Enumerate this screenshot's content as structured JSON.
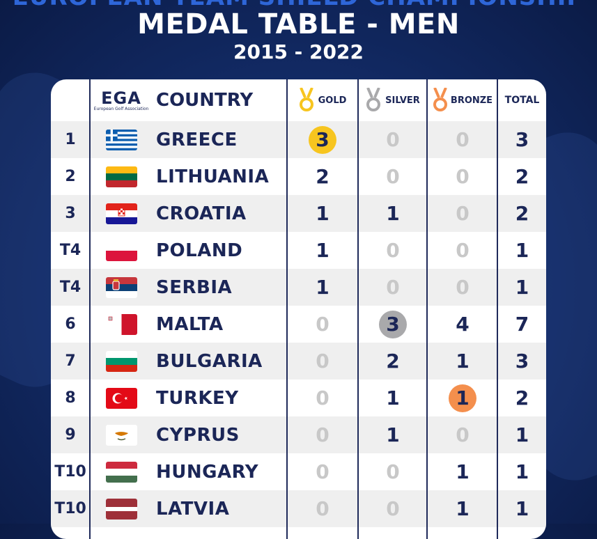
{
  "header": {
    "supertitle": "EUROPEAN TEAM SHIELD CHAMPIONSHIP",
    "title": "MEDAL TABLE - MEN",
    "years": "2015 - 2022"
  },
  "table_header": {
    "logo_text": "EGA",
    "logo_subtext": "European Golf Association",
    "country": "COUNTRY",
    "gold": "GOLD",
    "silver": "SILVER",
    "bronze": "BRONZE",
    "total": "TOTAL"
  },
  "colors": {
    "navy": "#1b2657",
    "gold_highlight": "#f7c51f",
    "silver_highlight": "#a9a9ab",
    "bronze_highlight": "#f48f4d",
    "zero_text": "#c8c8c8"
  },
  "rows": [
    {
      "rank": "1",
      "country": "GREECE",
      "flag": "greece-flag",
      "gold": "3",
      "silver": "0",
      "bronze": "0",
      "total": "3",
      "highlight": "gold"
    },
    {
      "rank": "2",
      "country": "LITHUANIA",
      "flag": "lithuania-flag",
      "gold": "2",
      "silver": "0",
      "bronze": "0",
      "total": "2",
      "highlight": ""
    },
    {
      "rank": "3",
      "country": "CROATIA",
      "flag": "croatia-flag",
      "gold": "1",
      "silver": "1",
      "bronze": "0",
      "total": "2",
      "highlight": ""
    },
    {
      "rank": "T4",
      "country": "POLAND",
      "flag": "poland-flag",
      "gold": "1",
      "silver": "0",
      "bronze": "0",
      "total": "1",
      "highlight": ""
    },
    {
      "rank": "T4",
      "country": "SERBIA",
      "flag": "serbia-flag",
      "gold": "1",
      "silver": "0",
      "bronze": "0",
      "total": "1",
      "highlight": ""
    },
    {
      "rank": "6",
      "country": "MALTA",
      "flag": "malta-flag",
      "gold": "0",
      "silver": "3",
      "bronze": "4",
      "total": "7",
      "highlight": "silver"
    },
    {
      "rank": "7",
      "country": "BULGARIA",
      "flag": "bulgaria-flag",
      "gold": "0",
      "silver": "2",
      "bronze": "1",
      "total": "3",
      "highlight": ""
    },
    {
      "rank": "8",
      "country": "TURKEY",
      "flag": "turkey-flag",
      "gold": "0",
      "silver": "1",
      "bronze": "1",
      "total": "2",
      "highlight": "bronze"
    },
    {
      "rank": "9",
      "country": "CYPRUS",
      "flag": "cyprus-flag",
      "gold": "0",
      "silver": "1",
      "bronze": "0",
      "total": "1",
      "highlight": ""
    },
    {
      "rank": "T10",
      "country": "HUNGARY",
      "flag": "hungary-flag",
      "gold": "0",
      "silver": "0",
      "bronze": "1",
      "total": "1",
      "highlight": ""
    },
    {
      "rank": "T10",
      "country": "LATVIA",
      "flag": "latvia-flag",
      "gold": "0",
      "silver": "0",
      "bronze": "1",
      "total": "1",
      "highlight": ""
    }
  ]
}
